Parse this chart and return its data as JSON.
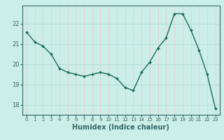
{
  "x": [
    0,
    1,
    2,
    3,
    4,
    5,
    6,
    7,
    8,
    9,
    10,
    11,
    12,
    13,
    14,
    15,
    16,
    17,
    18,
    19,
    20,
    21,
    22,
    23
  ],
  "y": [
    21.6,
    21.1,
    20.9,
    20.5,
    19.8,
    19.6,
    19.5,
    19.4,
    19.5,
    19.6,
    19.5,
    19.3,
    18.85,
    18.7,
    19.6,
    20.1,
    20.8,
    21.3,
    22.5,
    22.5,
    21.7,
    20.7,
    19.5,
    17.8
  ],
  "line_color": "#1a6b5a",
  "marker_color": "#1a6b5a",
  "bg_color": "#cceee8",
  "grid_color": "#aad8d0",
  "axis_color": "#336666",
  "xlabel": "Humidex (Indice chaleur)",
  "ylim": [
    17.5,
    22.9
  ],
  "xlim": [
    -0.5,
    23.5
  ],
  "yticks": [
    18,
    19,
    20,
    21,
    22
  ],
  "xticks": [
    0,
    1,
    2,
    3,
    4,
    5,
    6,
    7,
    8,
    9,
    10,
    11,
    12,
    13,
    14,
    15,
    16,
    17,
    18,
    19,
    20,
    21,
    22,
    23
  ]
}
